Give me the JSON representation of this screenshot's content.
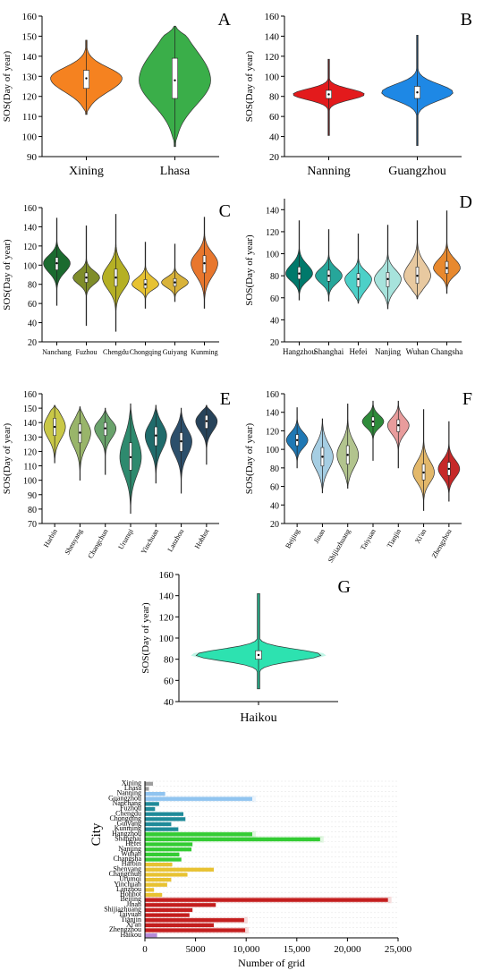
{
  "figure_title": "",
  "chart_data": [
    {
      "panel": "A",
      "type": "violin",
      "ylabel": "SOS(Day of year)",
      "ylim": [
        90,
        160
      ],
      "yticks": [
        90,
        100,
        110,
        120,
        130,
        140,
        150,
        160
      ],
      "categories": [
        "Xining",
        "Lhasa"
      ],
      "series": [
        {
          "name": "Xining",
          "color": "#f58220",
          "min": 111,
          "q1": 124,
          "median": 129,
          "q3": 133,
          "max": 148
        },
        {
          "name": "Lhasa",
          "color": "#3aae49",
          "min": 95,
          "q1": 119,
          "median": 128,
          "q3": 139,
          "max": 155
        }
      ]
    },
    {
      "panel": "B",
      "type": "violin",
      "ylabel": "SOS(Day of year)",
      "ylim": [
        20,
        160
      ],
      "yticks": [
        20,
        40,
        60,
        80,
        100,
        120,
        140,
        160
      ],
      "categories": [
        "Nanning",
        "Guangzhou"
      ],
      "series": [
        {
          "name": "Nanning",
          "color": "#e31a1c",
          "min": 41,
          "q1": 78,
          "median": 82,
          "q3": 86,
          "max": 117
        },
        {
          "name": "Guangzhou",
          "color": "#1e88e5",
          "min": 31,
          "q1": 78,
          "median": 84,
          "q3": 90,
          "max": 141
        }
      ]
    },
    {
      "panel": "C",
      "type": "violin",
      "ylabel": "SOS(Day of year)",
      "ylim": [
        20,
        160
      ],
      "yticks": [
        20,
        40,
        60,
        80,
        100,
        120,
        140,
        160
      ],
      "categories": [
        "Nanchang",
        "Fuzhou",
        "Chengdu",
        "Chongqing",
        "Guiyang",
        "Kunming"
      ],
      "series": [
        {
          "name": "Nanchang",
          "color": "#1b6b2f",
          "min": 58,
          "q1": 95,
          "median": 102,
          "q3": 108,
          "max": 149
        },
        {
          "name": "Fuzhou",
          "color": "#7f8d2a",
          "min": 37,
          "q1": 82,
          "median": 87,
          "q3": 92,
          "max": 141
        },
        {
          "name": "Chengdu",
          "color": "#b5b024",
          "min": 31,
          "q1": 78,
          "median": 87,
          "q3": 96,
          "max": 153
        },
        {
          "name": "Chongqing",
          "color": "#e7c232",
          "min": 55,
          "q1": 76,
          "median": 80,
          "q3": 85,
          "max": 124
        },
        {
          "name": "Guiyang",
          "color": "#d9b33a",
          "min": 62,
          "q1": 78,
          "median": 82,
          "q3": 86,
          "max": 122
        },
        {
          "name": "Kunming",
          "color": "#e8772e",
          "min": 55,
          "q1": 92,
          "median": 102,
          "q3": 110,
          "max": 150
        }
      ]
    },
    {
      "panel": "D",
      "type": "violin",
      "ylabel": "SOS(Day of year)",
      "ylim": [
        20,
        150
      ],
      "yticks": [
        20,
        40,
        60,
        80,
        100,
        120,
        140
      ],
      "categories": [
        "Hangzhou",
        "Shanghai",
        "Hefei",
        "Nanjing",
        "Wuhan",
        "Changsha"
      ],
      "series": [
        {
          "name": "Hangzhou",
          "color": "#00796b",
          "min": 58,
          "q1": 77,
          "median": 82,
          "q3": 88,
          "max": 130
        },
        {
          "name": "Shanghai",
          "color": "#26a69a",
          "min": 57,
          "q1": 75,
          "median": 80,
          "q3": 85,
          "max": 122
        },
        {
          "name": "Hefei",
          "color": "#4dd0c8",
          "min": 55,
          "q1": 70,
          "median": 77,
          "q3": 82,
          "max": 118
        },
        {
          "name": "Nanjing",
          "color": "#a7e3dc",
          "min": 50,
          "q1": 70,
          "median": 77,
          "q3": 83,
          "max": 126
        },
        {
          "name": "Wuhan",
          "color": "#e8c9a0",
          "min": 59,
          "q1": 73,
          "median": 80,
          "q3": 88,
          "max": 130
        },
        {
          "name": "Changsha",
          "color": "#e8892e",
          "min": 64,
          "q1": 82,
          "median": 87,
          "q3": 93,
          "max": 139
        }
      ]
    },
    {
      "panel": "E",
      "type": "violin",
      "ylabel": "SOS(Day of year)",
      "ylim": [
        70,
        160
      ],
      "yticks": [
        70,
        80,
        90,
        100,
        110,
        120,
        130,
        140,
        150,
        160
      ],
      "categories": [
        "Harbin",
        "Shenyang",
        "Changchun",
        "Urumqi",
        "Yinchuan",
        "Lanzhou",
        "Hohhot"
      ],
      "series": [
        {
          "name": "Harbin",
          "color": "#c9c847",
          "min": 112,
          "q1": 131,
          "median": 137,
          "q3": 143,
          "max": 152
        },
        {
          "name": "Shenyang",
          "color": "#99b56a",
          "min": 100,
          "q1": 126,
          "median": 133,
          "q3": 139,
          "max": 151
        },
        {
          "name": "Changchun",
          "color": "#6aa36c",
          "min": 104,
          "q1": 131,
          "median": 136,
          "q3": 140,
          "max": 150
        },
        {
          "name": "Urumqi",
          "color": "#2e8a6e",
          "min": 77,
          "q1": 107,
          "median": 116,
          "q3": 126,
          "max": 153
        },
        {
          "name": "Yinchuan",
          "color": "#1f6b6b",
          "min": 98,
          "q1": 124,
          "median": 131,
          "q3": 137,
          "max": 152
        },
        {
          "name": "Lanzhou",
          "color": "#2c4f6b",
          "min": 91,
          "q1": 120,
          "median": 127,
          "q3": 133,
          "max": 150
        },
        {
          "name": "Hohhot",
          "color": "#27435a",
          "min": 111,
          "q1": 136,
          "median": 141,
          "q3": 145,
          "max": 152
        }
      ]
    },
    {
      "panel": "F",
      "type": "violin",
      "ylabel": "SOS(Day of year)",
      "ylim": [
        20,
        160
      ],
      "yticks": [
        20,
        40,
        60,
        80,
        100,
        120,
        140,
        160
      ],
      "categories": [
        "Beijing",
        "Jinan",
        "Shijiazhuang",
        "Taiyuan",
        "Tianjin",
        "Xi'an",
        "Zhengzhou"
      ],
      "series": [
        {
          "name": "Beijing",
          "color": "#1f78b4",
          "min": 80,
          "q1": 104,
          "median": 110,
          "q3": 116,
          "max": 145
        },
        {
          "name": "Jinan",
          "color": "#a6cee3",
          "min": 53,
          "q1": 82,
          "median": 92,
          "q3": 102,
          "max": 133
        },
        {
          "name": "Shijiazhuang",
          "color": "#b2c48e",
          "min": 58,
          "q1": 84,
          "median": 94,
          "q3": 104,
          "max": 149
        },
        {
          "name": "Taiyuan",
          "color": "#2e8b3a",
          "min": 88,
          "q1": 125,
          "median": 130,
          "q3": 135,
          "max": 152
        },
        {
          "name": "Tianjin",
          "color": "#e89c9c",
          "min": 80,
          "q1": 119,
          "median": 126,
          "q3": 132,
          "max": 152
        },
        {
          "name": "Xi'an",
          "color": "#e3b86a",
          "min": 34,
          "q1": 67,
          "median": 75,
          "q3": 84,
          "max": 143
        },
        {
          "name": "Zhengzhou",
          "color": "#c62828",
          "min": 44,
          "q1": 72,
          "median": 79,
          "q3": 86,
          "max": 130
        }
      ]
    },
    {
      "panel": "G",
      "type": "violin",
      "ylabel": "SOS(Day of year)",
      "ylim": [
        40,
        160
      ],
      "yticks": [
        40,
        60,
        80,
        100,
        120,
        140,
        160
      ],
      "categories": [
        "Haikou"
      ],
      "series": [
        {
          "name": "Haikou",
          "color": "#2de2b0",
          "min": 52,
          "q1": 80,
          "median": 84,
          "q3": 88,
          "max": 142
        }
      ]
    },
    {
      "panel": "",
      "type": "bar",
      "orientation": "horizontal",
      "xlabel": "Number of grid",
      "ylabel": "City",
      "xlim": [
        0,
        25000
      ],
      "xticks": [
        0,
        5000,
        10000,
        15000,
        20000,
        25000
      ],
      "xtick_labels": [
        "0",
        "5000",
        "10,000",
        "15,000",
        "20,000",
        "25,000"
      ],
      "grid": true,
      "categories": [
        "Xining",
        "Lhasa",
        "Nanning",
        "Guangzhou",
        "Nanchang",
        "Fuzhou",
        "Chengdu",
        "Chongqing",
        "Guiyang",
        "Kunming",
        "Hangzhou",
        "Shanghai",
        "Hefei",
        "Nanjing",
        "Wuhan",
        "Changsha",
        "Harbin",
        "Shenyang",
        "Changchun",
        "Urumqi",
        "Yinchuan",
        "Lanzhou",
        "Hohhot",
        "Beijing",
        "Jinan",
        "Shijiazhuang",
        "Taiyuan",
        "Tianjin",
        "Xi'an",
        "Zhengzhou",
        "Haikou"
      ],
      "values": [
        800,
        400,
        2000,
        10600,
        1400,
        1000,
        3800,
        4000,
        2600,
        3300,
        10600,
        17300,
        4700,
        4600,
        3400,
        3600,
        2700,
        6800,
        4200,
        2600,
        2200,
        900,
        1700,
        24000,
        7000,
        4700,
        4400,
        9800,
        6800,
        9900,
        1200
      ],
      "colors": [
        "#9e9e9e",
        "#9e9e9e",
        "#90c4f0",
        "#90c4f0",
        "#1f8a99",
        "#1f8a99",
        "#1f8a99",
        "#1f8a99",
        "#1f8a99",
        "#1f8a99",
        "#33cc33",
        "#33cc33",
        "#33cc33",
        "#33cc33",
        "#33cc33",
        "#33cc33",
        "#e8c232",
        "#e8c232",
        "#e8c232",
        "#e8c232",
        "#e8c232",
        "#e8c232",
        "#e8c232",
        "#c41e1e",
        "#c41e1e",
        "#c41e1e",
        "#c41e1e",
        "#c41e1e",
        "#c41e1e",
        "#c41e1e",
        "#b58ad8"
      ]
    }
  ]
}
